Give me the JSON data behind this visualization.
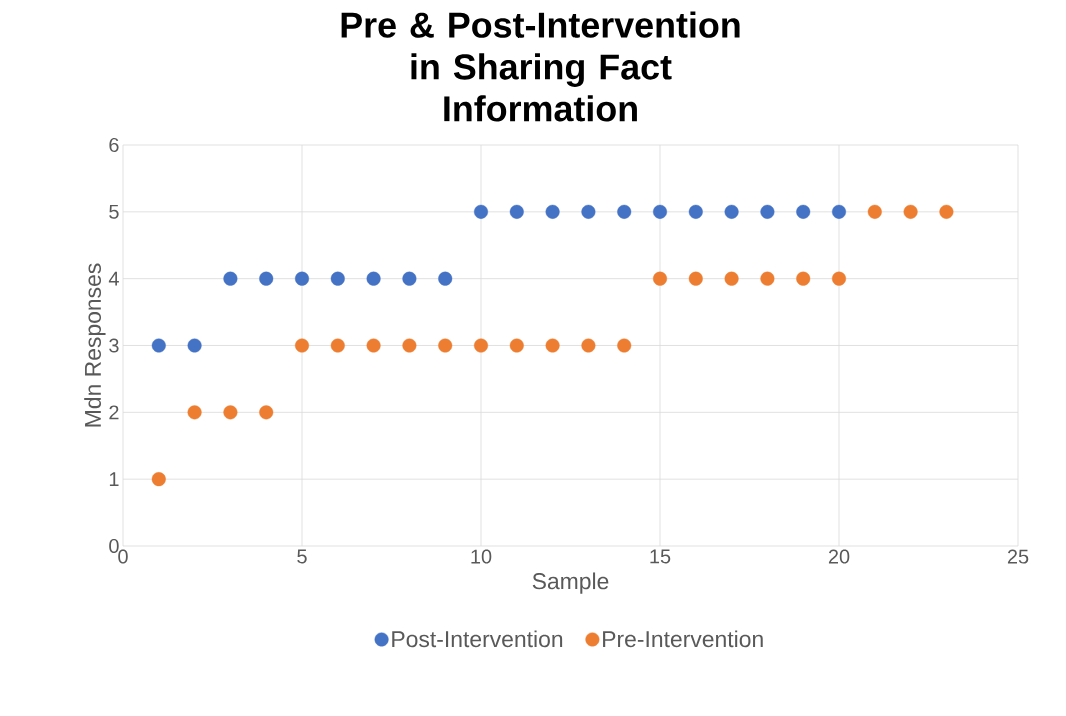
{
  "chart_data": {
    "type": "scatter",
    "title": "Pre & Post-Intervention in Sharing Fact Information",
    "xlabel": "Sample",
    "ylabel": "Mdn Responses",
    "x": [
      1,
      2,
      3,
      4,
      5,
      6,
      7,
      8,
      9,
      10,
      11,
      12,
      13,
      14,
      15,
      16,
      17,
      18,
      19,
      20,
      21,
      22,
      23
    ],
    "series": [
      {
        "name": "Post-Intervention",
        "color": "#4472c4",
        "values": [
          3,
          3,
          4,
          4,
          4,
          4,
          4,
          4,
          4,
          5,
          5,
          5,
          5,
          5,
          5,
          5,
          5,
          5,
          5,
          5,
          null,
          null,
          null
        ]
      },
      {
        "name": "Pre-Intervention",
        "color": "#ed7d31",
        "values": [
          1,
          2,
          2,
          2,
          3,
          3,
          3,
          3,
          3,
          3,
          3,
          3,
          3,
          3,
          4,
          4,
          4,
          4,
          4,
          4,
          5,
          5,
          5
        ]
      }
    ],
    "xlim": [
      0,
      25
    ],
    "ylim": [
      0,
      6
    ],
    "xticks": [
      0,
      5,
      10,
      15,
      20,
      25
    ],
    "yticks": [
      0,
      1,
      2,
      3,
      4,
      5,
      6
    ],
    "grid": true,
    "legend": "bottom",
    "marker": "circle"
  }
}
